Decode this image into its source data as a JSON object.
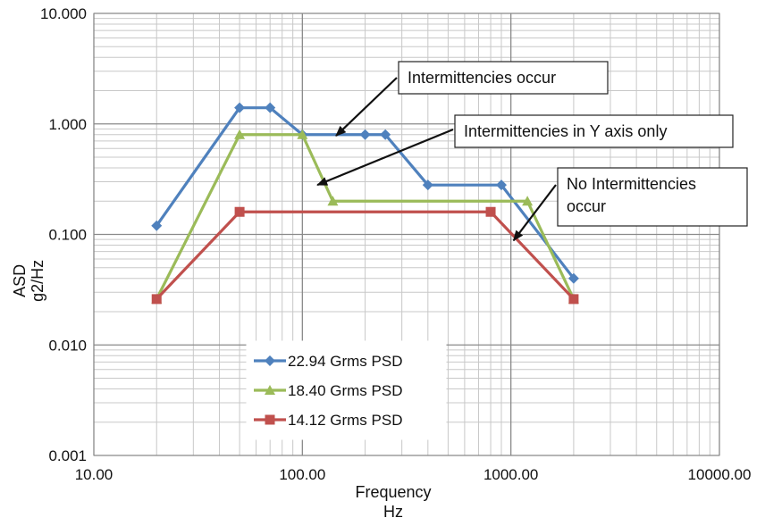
{
  "chart_data": {
    "type": "line",
    "title": "",
    "xlabel": [
      "Frequency",
      "Hz"
    ],
    "ylabel": [
      "ASD",
      "g2/Hz"
    ],
    "xscale": "log",
    "yscale": "log",
    "xlim": [
      10,
      10000
    ],
    "ylim": [
      0.001,
      10
    ],
    "grid": true,
    "x_tick_labels": [
      "10.00",
      "100.00",
      "1000.00",
      "10000.00"
    ],
    "y_tick_labels": [
      "0.001",
      "0.010",
      "0.100",
      "1.000",
      "10.000"
    ],
    "legend_position": "bottom-left",
    "series": [
      {
        "name": "22.94 Grms PSD",
        "color": "#4f81bd",
        "marker": "diamond",
        "x": [
          20,
          50,
          70,
          100,
          200,
          250,
          400,
          900,
          2000
        ],
        "y": [
          0.12,
          1.4,
          1.4,
          0.8,
          0.8,
          0.8,
          0.28,
          0.28,
          0.04
        ]
      },
      {
        "name": "18.40 Grms PSD",
        "color": "#9bbb59",
        "marker": "triangle",
        "x": [
          20,
          50,
          100,
          140,
          1200,
          2000
        ],
        "y": [
          0.026,
          0.8,
          0.8,
          0.2,
          0.2,
          0.026
        ]
      },
      {
        "name": "14.12 Grms PSD",
        "color": "#c0504d",
        "marker": "square",
        "x": [
          20,
          50,
          800,
          2000
        ],
        "y": [
          0.026,
          0.16,
          0.16,
          0.026
        ]
      }
    ],
    "annotations": [
      {
        "text": [
          "Intermittencies occur"
        ],
        "target_x": 145,
        "target_y": 0.78
      },
      {
        "text": [
          "Intermittencies in Y axis only"
        ],
        "target_x": 118,
        "target_y": 0.28
      },
      {
        "text": [
          "No Intermittencies",
          "occur"
        ],
        "target_x": 1030,
        "target_y": 0.088
      }
    ]
  }
}
